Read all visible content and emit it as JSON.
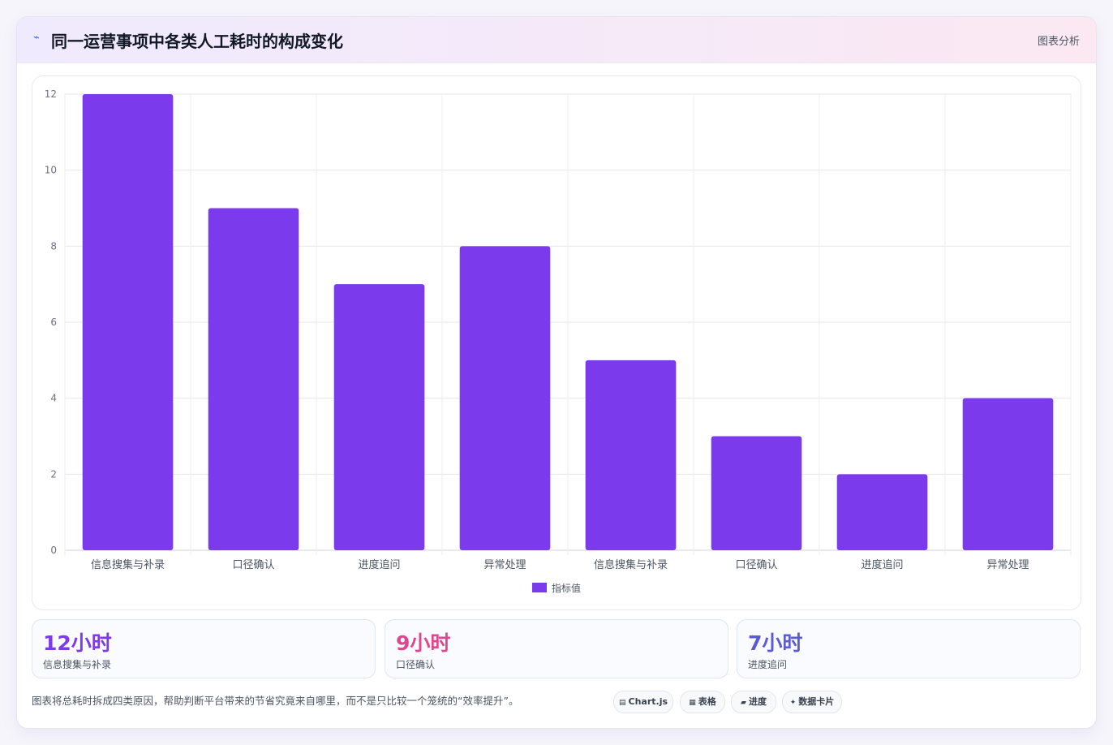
{
  "header": {
    "title_icon": "pulse-icon",
    "title": "同一运营事项中各类人工耗时的构成变化",
    "right_label": "图表分析"
  },
  "chart_data": {
    "type": "bar",
    "categories": [
      "信息搜集与补录",
      "口径确认",
      "进度追问",
      "异常处理",
      "信息搜集与补录",
      "口径确认",
      "进度追问",
      "异常处理"
    ],
    "series": [
      {
        "name": "指标值",
        "values": [
          12,
          9,
          7,
          8,
          5,
          3,
          2,
          4
        ],
        "color": "#7c3aed"
      }
    ],
    "ylim": [
      0,
      12
    ],
    "yticks": [
      0,
      2,
      4,
      6,
      8,
      10,
      12
    ],
    "grid": true,
    "legend": "bottom"
  },
  "stats": [
    {
      "value": "12小时",
      "label": "信息搜集与补录",
      "color": "#7c3aed"
    },
    {
      "value": "9小时",
      "label": "口径确认",
      "color": "#e0468f"
    },
    {
      "value": "7小时",
      "label": "进度追问",
      "color": "#5b5bd6"
    }
  ],
  "footnote": "图表将总耗时拆成四类原因，帮助判断平台带来的节省究竟来自哪里，而不是只比较一个笼统的“效率提升”。",
  "chips": [
    {
      "icon": "chart-icon",
      "glyph": "▤",
      "label": "Chart.js"
    },
    {
      "icon": "table-icon",
      "glyph": "▦",
      "label": "表格"
    },
    {
      "icon": "progress-icon",
      "glyph": "▰",
      "label": "进度"
    },
    {
      "icon": "sparkle-icon",
      "glyph": "✦",
      "label": "数据卡片"
    }
  ]
}
